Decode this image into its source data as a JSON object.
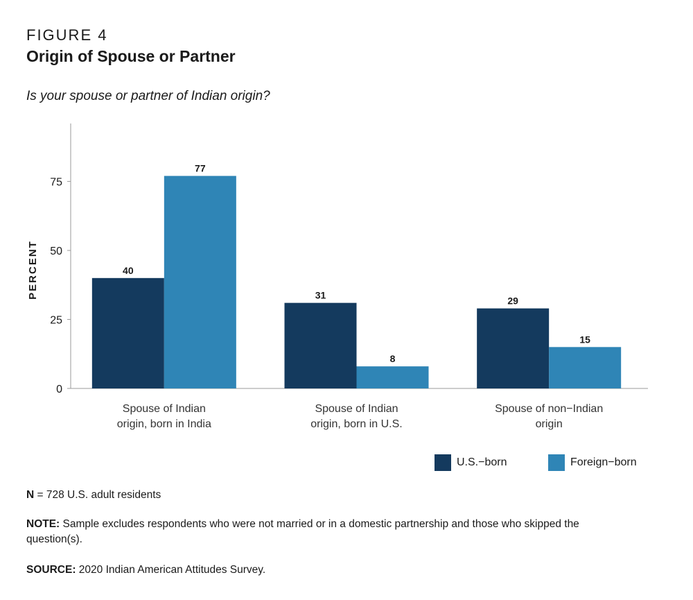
{
  "figure_label": "FIGURE 4",
  "title": "Origin of Spouse or Partner",
  "subtitle": "Is your spouse or partner of Indian origin?",
  "chart_data": {
    "type": "bar",
    "categories": [
      [
        "Spouse of Indian",
        "origin, born in India"
      ],
      [
        "Spouse of Indian",
        "origin, born in U.S."
      ],
      [
        "Spouse of non−Indian",
        "origin"
      ]
    ],
    "series": [
      {
        "name": "U.S.−born",
        "values": [
          40,
          31,
          29
        ],
        "color": "#143a5e"
      },
      {
        "name": "Foreign−born",
        "values": [
          77,
          8,
          15
        ],
        "color": "#2f85b6"
      }
    ],
    "ylabel": "PERCENT",
    "yticks": [
      0,
      25,
      50,
      75
    ],
    "ylim": [
      0,
      96
    ],
    "legend_position": "bottom-right",
    "grid": false
  },
  "footnotes": {
    "n_label": "N",
    "n_text": " = 728 U.S. adult residents",
    "note_label": "NOTE:",
    "note_text": " Sample excludes respondents who were not married or in a domestic partnership and those who skipped the question(s).",
    "source_label": "SOURCE:",
    "source_text": " 2020 Indian American Attitudes Survey."
  }
}
